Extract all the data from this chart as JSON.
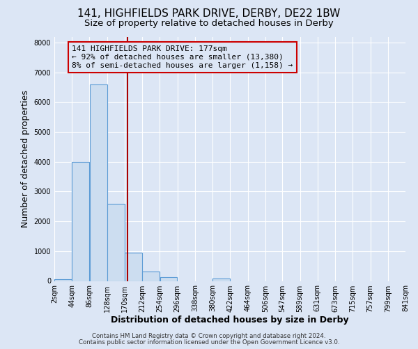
{
  "title1": "141, HIGHFIELDS PARK DRIVE, DERBY, DE22 1BW",
  "title2": "Size of property relative to detached houses in Derby",
  "xlabel": "Distribution of detached houses by size in Derby",
  "ylabel": "Number of detached properties",
  "bin_edges": [
    2,
    44,
    86,
    128,
    170,
    212,
    254,
    296,
    338,
    380,
    422,
    464,
    506,
    547,
    589,
    631,
    673,
    715,
    757,
    799,
    841
  ],
  "bar_heights": [
    70,
    4000,
    6600,
    2600,
    950,
    320,
    130,
    0,
    0,
    80,
    0,
    0,
    0,
    0,
    0,
    0,
    0,
    0,
    0,
    0
  ],
  "bar_color": "#ccddf0",
  "bar_edge_color": "#5b9bd5",
  "property_size": 177,
  "vline_color": "#aa0000",
  "annotation_text": "141 HIGHFIELDS PARK DRIVE: 177sqm\n← 92% of detached houses are smaller (13,380)\n8% of semi-detached houses are larger (1,158) →",
  "annotation_box_edge_color": "#cc0000",
  "ylim": [
    0,
    8200
  ],
  "yticks": [
    0,
    1000,
    2000,
    3000,
    4000,
    5000,
    6000,
    7000,
    8000
  ],
  "background_color": "#dce6f5",
  "plot_bg_color": "#dce6f5",
  "grid_color": "#ffffff",
  "footer_line1": "Contains HM Land Registry data © Crown copyright and database right 2024.",
  "footer_line2": "Contains public sector information licensed under the Open Government Licence v3.0.",
  "title1_fontsize": 11,
  "title2_fontsize": 9.5,
  "axis_label_fontsize": 9,
  "tick_fontsize": 7,
  "annotation_fontsize": 8
}
